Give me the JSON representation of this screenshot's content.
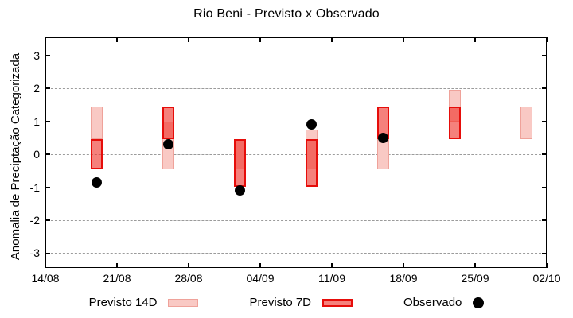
{
  "title": "Rio Beni - Previsto x Observado",
  "legend": {
    "p14_label": "Previsto 14D",
    "p7_label": "Previsto 7D",
    "obs_label": "Observado"
  },
  "colors": {
    "p14_fill": "#f9c9c4",
    "p14_border": "#efa29a",
    "p7_fill": "rgba(238,45,36,0.60)",
    "p7_border": "#e60d0a",
    "observed": "#000000",
    "grid": "#9b9b9b",
    "axis": "#000000",
    "background": "#ffffff"
  },
  "chart_data": {
    "type": "bar",
    "subtype": "overlapping-range-bars-with-scatter",
    "title": "Rio Beni - Previsto x Observado",
    "xlabel": "",
    "ylabel": "Anomalia de Preciptação Categorizada",
    "ylim": [
      -3.45,
      3.55
    ],
    "yticks": [
      3,
      2,
      1,
      0,
      -1,
      -2,
      -3
    ],
    "x_range_days": [
      0,
      49
    ],
    "xtick_days": [
      0,
      7,
      14,
      21,
      28,
      35,
      42,
      49
    ],
    "xtick_labels": [
      "14/08",
      "21/08",
      "28/08",
      "04/09",
      "11/09",
      "18/09",
      "25/09",
      "02/10"
    ],
    "grid": true,
    "legend_position": "bottom",
    "series": [
      {
        "name": "Previsto 14D",
        "type": "range-bar"
      },
      {
        "name": "Previsto 7D",
        "type": "range-bar"
      },
      {
        "name": "Observado",
        "type": "scatter"
      }
    ],
    "points": [
      {
        "date": "19/08",
        "day": 5,
        "previsto_14d": [
          0.45,
          1.45
        ],
        "previsto_7d": [
          -0.45,
          0.45
        ],
        "observado": -0.85
      },
      {
        "date": "26/08",
        "day": 12,
        "previsto_14d": [
          -0.45,
          1.0
        ],
        "previsto_7d": [
          0.45,
          1.45
        ],
        "observado": 0.3
      },
      {
        "date": "02/09",
        "day": 19,
        "previsto_14d": [
          -0.45,
          0.45
        ],
        "previsto_7d": [
          -1.0,
          0.45
        ],
        "observado": -1.1
      },
      {
        "date": "09/09",
        "day": 26,
        "previsto_14d": [
          -0.45,
          0.75
        ],
        "previsto_7d": [
          -1.0,
          0.45
        ],
        "observado": 0.9
      },
      {
        "date": "16/09",
        "day": 33,
        "previsto_14d": [
          -0.45,
          0.45
        ],
        "previsto_7d": [
          0.45,
          1.45
        ],
        "observado": 0.5
      },
      {
        "date": "23/09",
        "day": 40,
        "previsto_14d": [
          1.0,
          1.95
        ],
        "previsto_7d": [
          0.45,
          1.45
        ],
        "observado": null
      },
      {
        "date": "30/09",
        "day": 47,
        "previsto_14d": [
          0.45,
          1.45
        ],
        "previsto_7d": null,
        "observado": null
      }
    ]
  }
}
